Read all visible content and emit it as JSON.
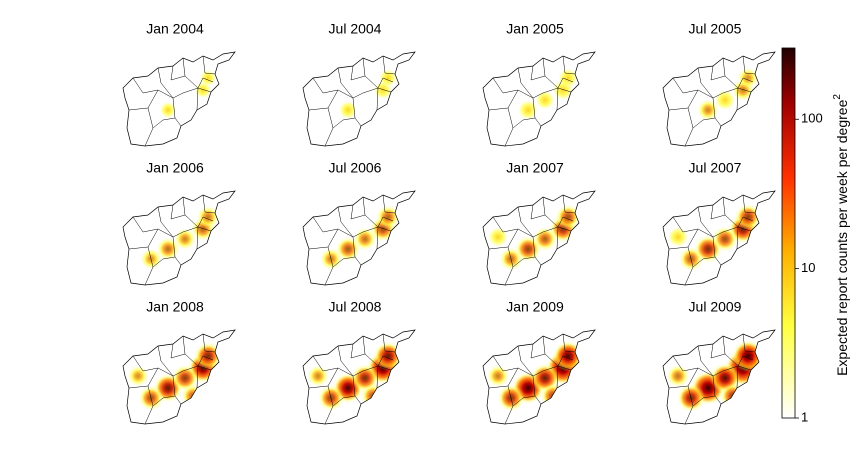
{
  "panels": [
    "Jan 2004",
    "Jul 2004",
    "Jan 2005",
    "Jul 2005",
    "Jan 2006",
    "Jul 2006",
    "Jan 2007",
    "Jul 2007",
    "Jan 2008",
    "Jul 2008",
    "Jan 2009",
    "Jul 2009"
  ],
  "colorbar": {
    "label": "Expected report counts per week per degree",
    "label_superscript": "2",
    "scale": "log",
    "lim": [
      1,
      300
    ],
    "ticks": [
      1,
      10,
      100
    ]
  }
}
